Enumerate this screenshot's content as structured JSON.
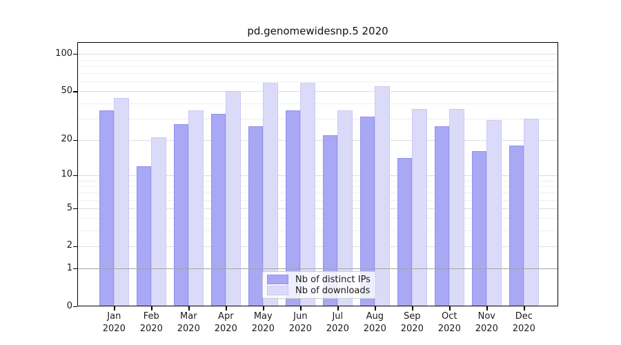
{
  "title": "pd.genomewidesnp.5 2020",
  "legend": {
    "items": [
      {
        "label": "Nb of distinct IPs",
        "series_key": "distinct_ips"
      },
      {
        "label": "Nb of downloads",
        "series_key": "downloads"
      }
    ]
  },
  "chart_data": {
    "type": "bar",
    "title": "pd.genomewidesnp.5 2020",
    "categories": [
      "Jan 2020",
      "Feb 2020",
      "Mar 2020",
      "Apr 2020",
      "May 2020",
      "Jun 2020",
      "Jul 2020",
      "Aug 2020",
      "Sep 2020",
      "Oct 2020",
      "Nov 2020",
      "Dec 2020"
    ],
    "series": [
      {
        "name": "Nb of distinct IPs",
        "key": "distinct_ips",
        "values": [
          35,
          12,
          27,
          33,
          26,
          35,
          22,
          31,
          14,
          26,
          16,
          18
        ]
      },
      {
        "name": "Nb of downloads",
        "key": "downloads",
        "values": [
          44,
          21,
          35,
          50,
          59,
          59,
          35,
          55,
          36,
          36,
          29,
          30
        ]
      }
    ],
    "yscale": "log10(1+x)",
    "ylim": [
      0,
      125
    ],
    "y_tick_labels": [
      "100",
      "50",
      "20",
      "10",
      "5",
      "2",
      "1",
      "0"
    ],
    "y_tick_values": [
      100,
      50,
      20,
      10,
      5,
      2,
      1,
      0
    ],
    "y_major_gridlines": [
      1,
      2,
      5,
      10,
      20,
      50,
      100
    ],
    "y_minor_gridlines": [
      3,
      4,
      6,
      7,
      8,
      9,
      30,
      40,
      60,
      70,
      80,
      90
    ],
    "baseline_value": 1,
    "grid": true,
    "legend_position": "lower center",
    "xlabel": "",
    "ylabel": ""
  },
  "colors": {
    "bar_distinct_ips": "#a8a8f5",
    "bar_distinct_ips_edge": "#9191ec",
    "bar_downloads": "#dbdbf9",
    "bar_downloads_edge": "#c9c9f4",
    "grid_major": "#dddddd",
    "grid_minor": "#efefef",
    "baseline_one": "#a3a3a3",
    "spine": "#000000",
    "text": "#1a1a1a"
  }
}
